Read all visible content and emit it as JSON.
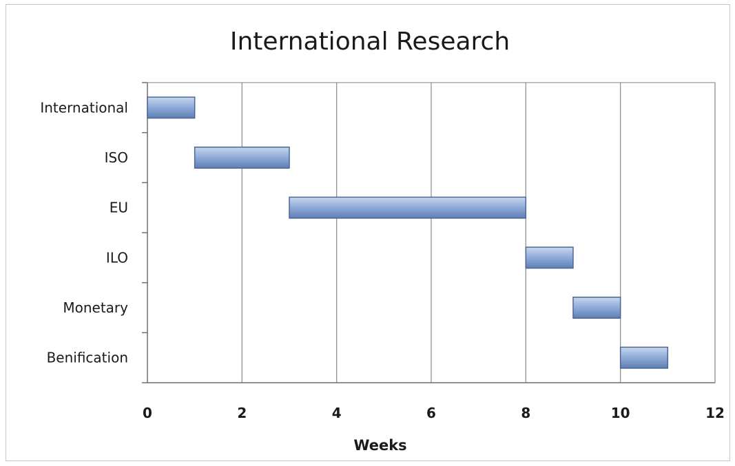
{
  "chart_data": {
    "type": "bar",
    "orientation": "horizontal",
    "stacked_gantt": true,
    "title": "International Research",
    "xlabel": "Weeks",
    "ylabel": "",
    "xlim": [
      0,
      12
    ],
    "xticks": [
      0,
      2,
      4,
      6,
      8,
      10,
      12
    ],
    "grid": {
      "vertical": true,
      "horizontal": false
    },
    "legend": "none",
    "bar_color": "#7d9bc9",
    "bar_edge_color": "#4a6694",
    "categories": [
      "International",
      "ISO",
      "EU",
      "ILO",
      "Monetary",
      "Benification"
    ],
    "tasks": [
      {
        "label": "International",
        "start": 0,
        "duration": 1
      },
      {
        "label": "ISO",
        "start": 1,
        "duration": 2
      },
      {
        "label": "EU",
        "start": 3,
        "duration": 5
      },
      {
        "label": "ILO",
        "start": 8,
        "duration": 1
      },
      {
        "label": "Monetary",
        "start": 9,
        "duration": 1
      },
      {
        "label": "Benification",
        "start": 10,
        "duration": 1
      }
    ]
  }
}
